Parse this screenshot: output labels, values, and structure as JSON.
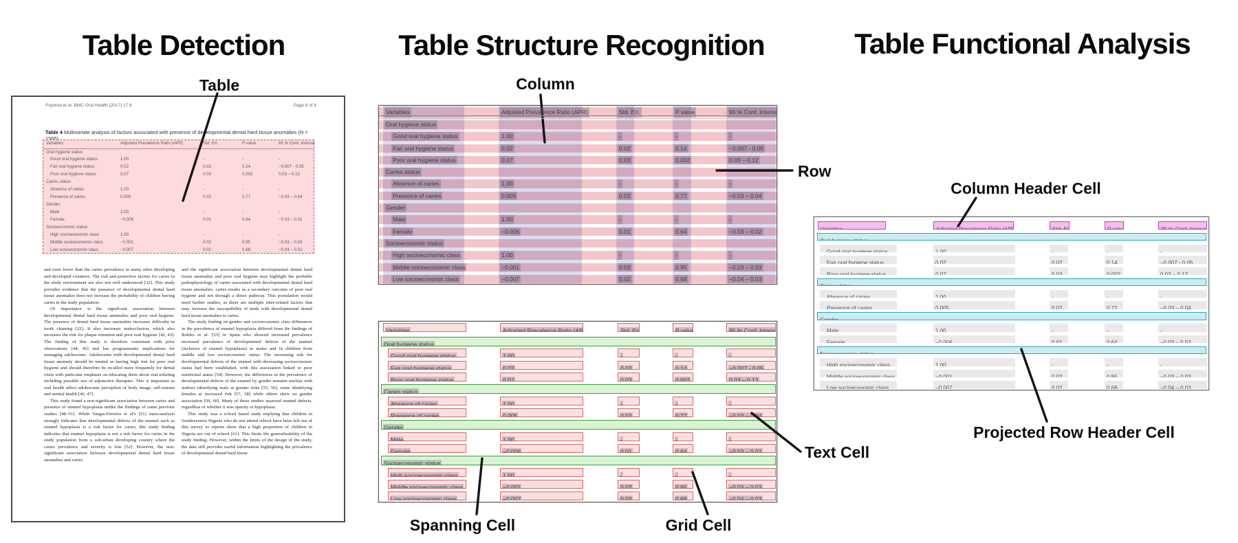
{
  "titles": {
    "left": "Table Detection",
    "middle": "Table Structure Recognition",
    "right": "Table Functional Analysis"
  },
  "callouts": {
    "table": "Table",
    "column": "Column",
    "row": "Row",
    "spanning_cell": "Spanning Cell",
    "grid_cell": "Grid Cell",
    "text_cell": "Text Cell",
    "column_header_cell": "Column Header Cell",
    "projected_row_header_cell": "Projected Row Header Cell"
  },
  "document": {
    "header_left": "Popoola et al. BMC Oral Health (2017) 17:8",
    "header_right": "Page 6 of 8",
    "caption_label": "Table 4",
    "caption_text": "Multivariate analysis of factors associated with presence of developmental dental hard tissue anomalies (N = 1565)",
    "body_left": [
      "and even lower than the caries prevalence in many other developing and developed countries. The risk and protective factors for caries in the study environment are also not well understood [32]. This study provides evidence that the presence of developmental dental hard tissue anomalies does not increase the probability of children having caries in the study population.",
      "Of importance is the significant association between developmental dental hard tissue anomalies and poor oral hygiene. The presence of dental hard tissue anomalies increases difficulty in tooth cleaning [22]. It also increases malocclusion, which also increases the risk for plaque retention and poor oral hygiene [42, 43]. The finding of this study is therefore consistent with prior observations [44, 45] and has programmatic implications for managing adolescents. Adolescents with developmental dental hard tissue anomaly should be treated as having high risk for poor oral hygiene and should therefore be recalled more frequently for dental visits with particular emphasis on educating them about oral toileting including possible use of adjunctive therapies. This is important as oral health affect adolescents perception of body image, self-esteem and mental health [46, 47].",
      "This study found a non-significant association between caries and presence of enamel hypoplasia unlike the findings of some previous studies [48–51]. While Vargas-Ferreira et al's [51] meta-analysis strongly indicates that developmental defects of the enamel such as enamel hypoplasia is a risk factor for caries, this study finding indicates that enamel hypoplasia is not a risk factor for caries in the study population from a sub-urban developing country where the caries prevalence and severity is low [52]. However, the non-significant association between developmental dental hard tissue anomalies and caries"
    ],
    "body_right": [
      "and the significant association between developmental dental hard tissue anomalies and poor oral hygiene may highlight the probable pathophysiology of caries associated with developmental dental hard tissue anomalies: caries results as a secondary outcome of poor oral hygiene and not through a direct pathway. This postulation would need further studies, as there are multiple inter-related factors that may increase the susceptibility of teeth with developmental dental hard tissue anomalies to caries.",
      "The study finding on gender and socioeconomic class differences in the prevalence of enamel hypoplasia differed from the findings of Robles et al. [53] in Spain who showed increased prevalence increased prevalence of developmental defects of the enamel (inclusive of enamel hypoplasia) in males and in children from middle and low socioeconomic status. The increasing risk for developmental defects of the enamel with decreasing socioeconomic status had been established, with this association linked to poor nutritional status [54]. However, the differences in the prevalence of developmental defects of the enamel by gender remains unclear with authors identifying male at greater risks [55, 56], some identifying females at increased risk [57, 58] while others show no gender association [59, 60]. Many of these studies assessed enamel defects, regardless of whether it was opacity or hypoplasia.",
      "This study was a school based study implying that children in Southwestern Nigeria who do not attend school have been left out of this survey as reports show that a high proportion of children in Nigeria are out of school [61]. This limits the generalizability of the study finding. However, within the limits of the design of the study, the data still provides useful information highlighting the prevalence of developmental dental hard tissue"
    ]
  },
  "table": {
    "headers": [
      "Variables",
      "Adjusted Prevalence Ratio (APR)",
      "Std. Err.",
      "P value",
      "95 % Conf. Interval"
    ],
    "rows": [
      {
        "type": "group",
        "label": "Oral hygiene status"
      },
      {
        "type": "data",
        "label": "Good oral hygiene status",
        "apr": "1.00",
        "se": "-",
        "p": "-",
        "ci": "-"
      },
      {
        "type": "data",
        "label": "Fair oral hygiene status",
        "apr": "0.02",
        "se": "0.02",
        "p": "0.14",
        "ci": "−0.007 - 0.05"
      },
      {
        "type": "data",
        "label": "Poor oral hygiene status",
        "apr": "0.07",
        "se": "0.03",
        "p": "0.002",
        "ci": "0.03 – 0.12"
      },
      {
        "type": "group",
        "label": "Caries status"
      },
      {
        "type": "data",
        "label": "Absence of caries",
        "apr": "1.00",
        "se": "-",
        "p": "-",
        "ci": "-"
      },
      {
        "type": "data",
        "label": "Presence of caries",
        "apr": "0.005",
        "se": "0.02",
        "p": "0.77",
        "ci": "−0.03 – 0.04"
      },
      {
        "type": "group",
        "label": "Gender"
      },
      {
        "type": "data",
        "label": "Male",
        "apr": "1.00",
        "se": "-",
        "p": "-",
        "ci": "-"
      },
      {
        "type": "data",
        "label": "Female",
        "apr": "−0.006",
        "se": "0.01",
        "p": "0.64",
        "ci": "−0.03 – 0.02"
      },
      {
        "type": "group",
        "label": "Socioeconomic status"
      },
      {
        "type": "data",
        "label": "High socioeconomic class",
        "apr": "1.00",
        "se": "-",
        "p": "-",
        "ci": "-"
      },
      {
        "type": "data",
        "label": "Middle socioeconomic class",
        "apr": "−0.001",
        "se": "0.02",
        "p": "0.95",
        "ci": "−0.03 – 0.03"
      },
      {
        "type": "data",
        "label": "Low socioeconomic class",
        "apr": "−0.007",
        "se": "0.02",
        "p": "0.68",
        "ci": "−0.04 – 0.03"
      }
    ]
  },
  "colors": {
    "row_pink": "#f3c6cc",
    "column_lavender": "#dcdbef",
    "doc_table_pink": "#fcdadd",
    "dashed_red": "#da5454",
    "cell_fill": "#fcdfe1",
    "cell_border": "#cc6b66",
    "spanning_fill": "#d9f3d3",
    "spanning_border": "#3f9e41",
    "header_cell_fill": "#f6bdf0",
    "header_cell_border": "#c43ec4",
    "proj_row_fill": "#c9edf2",
    "proj_row_border": "#2fa6ba",
    "gray_cell": "#e9e8ea"
  }
}
